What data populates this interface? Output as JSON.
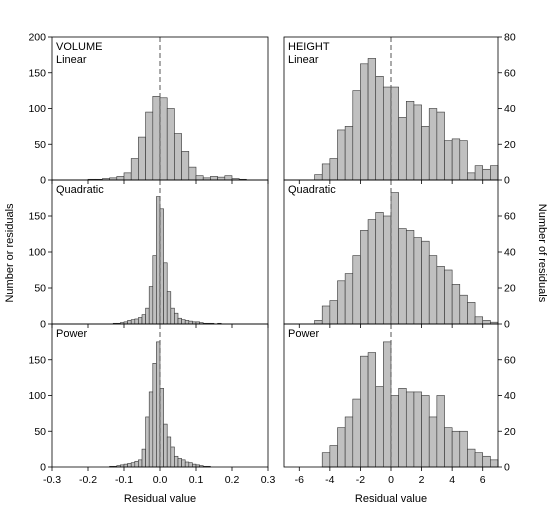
{
  "figure": {
    "ylabel_left": "Number or residuals",
    "ylabel_right": "Number of residuals",
    "xlabel_left": "Residual value",
    "xlabel_right": "Residual value",
    "bar_fill": "#c0c0c0",
    "bar_stroke": "#333333",
    "zero_line_color": "#555555"
  },
  "chart_data": [
    {
      "type": "bar",
      "column": "VOLUME",
      "panel_title": "VOLUME",
      "model": "Linear",
      "xlim": [
        -0.3,
        0.3
      ],
      "ylim": [
        0,
        200
      ],
      "xticks": [
        "-0.3",
        "-0.2",
        "-0.1",
        "0.0",
        "0.1",
        "0.2",
        "0.3"
      ],
      "yticks": [
        "0",
        "50",
        "100",
        "150",
        "200"
      ],
      "bin_width": 0.02,
      "bin_starts": [
        -0.26,
        -0.24,
        -0.22,
        -0.2,
        -0.18,
        -0.16,
        -0.14,
        -0.12,
        -0.1,
        -0.08,
        -0.06,
        -0.04,
        -0.02,
        0.0,
        0.02,
        0.04,
        0.06,
        0.08,
        0.1,
        0.12,
        0.14,
        0.16,
        0.18,
        0.2,
        0.22,
        0.24
      ],
      "values": [
        0,
        0,
        0,
        1,
        1,
        2,
        3,
        5,
        10,
        30,
        60,
        95,
        117,
        115,
        100,
        65,
        40,
        18,
        6,
        3,
        5,
        4,
        6,
        2,
        1,
        0
      ]
    },
    {
      "type": "bar",
      "column": "VOLUME",
      "panel_title": "",
      "model": "Quadratic",
      "xlim": [
        -0.3,
        0.3
      ],
      "ylim": [
        0,
        200
      ],
      "xticks": [
        "-0.3",
        "-0.2",
        "-0.1",
        "0.0",
        "0.1",
        "0.2",
        "0.3"
      ],
      "yticks": [
        "0",
        "50",
        "100",
        "150"
      ],
      "bin_width": 0.01,
      "bin_starts": [
        -0.2,
        -0.19,
        -0.18,
        -0.17,
        -0.16,
        -0.15,
        -0.14,
        -0.13,
        -0.12,
        -0.11,
        -0.1,
        -0.09,
        -0.08,
        -0.07,
        -0.06,
        -0.05,
        -0.04,
        -0.03,
        -0.02,
        -0.01,
        0.0,
        0.01,
        0.02,
        0.03,
        0.04,
        0.05,
        0.06,
        0.07,
        0.08,
        0.09,
        0.1,
        0.11,
        0.12,
        0.13,
        0.14,
        0.15,
        0.16,
        0.17,
        0.18,
        0.19
      ],
      "values": [
        0,
        0,
        0,
        0,
        0,
        0,
        0,
        1,
        1,
        2,
        3,
        5,
        6,
        7,
        9,
        13,
        22,
        52,
        95,
        177,
        160,
        85,
        45,
        22,
        15,
        8,
        6,
        5,
        4,
        3,
        3,
        2,
        1,
        1,
        1,
        0,
        1,
        0,
        0,
        0
      ]
    },
    {
      "type": "bar",
      "column": "VOLUME",
      "panel_title": "",
      "model": "Power",
      "xlim": [
        -0.3,
        0.3
      ],
      "ylim": [
        0,
        200
      ],
      "xticks": [
        "-0.3",
        "-0.2",
        "-0.1",
        "0.0",
        "0.1",
        "0.2",
        "0.3"
      ],
      "yticks": [
        "0",
        "50",
        "100",
        "150"
      ],
      "bin_width": 0.01,
      "bin_starts": [
        -0.2,
        -0.19,
        -0.18,
        -0.17,
        -0.16,
        -0.15,
        -0.14,
        -0.13,
        -0.12,
        -0.11,
        -0.1,
        -0.09,
        -0.08,
        -0.07,
        -0.06,
        -0.05,
        -0.04,
        -0.03,
        -0.02,
        -0.01,
        0.0,
        0.01,
        0.02,
        0.03,
        0.04,
        0.05,
        0.06,
        0.07,
        0.08,
        0.09,
        0.1,
        0.11,
        0.12,
        0.13,
        0.14
      ],
      "values": [
        0,
        0,
        0,
        0,
        0,
        0,
        1,
        1,
        2,
        3,
        4,
        5,
        6,
        8,
        10,
        25,
        70,
        105,
        145,
        175,
        110,
        60,
        42,
        28,
        15,
        12,
        10,
        7,
        6,
        4,
        3,
        2,
        1,
        1,
        0
      ]
    },
    {
      "type": "bar",
      "column": "HEIGHT",
      "panel_title": "HEIGHT",
      "model": "Linear",
      "xlim": [
        -7,
        7
      ],
      "ylim": [
        0,
        80
      ],
      "xticks": [
        "-6",
        "-4",
        "-2",
        "0",
        "2",
        "4",
        "6"
      ],
      "yticks": [
        "0",
        "20",
        "40",
        "60",
        "80"
      ],
      "bin_width": 0.5,
      "bin_starts": [
        -6.5,
        -6.0,
        -5.5,
        -5.0,
        -4.5,
        -4.0,
        -3.5,
        -3.0,
        -2.5,
        -2.0,
        -1.5,
        -1.0,
        -0.5,
        0.0,
        0.5,
        1.0,
        1.5,
        2.0,
        2.5,
        3.0,
        3.5,
        4.0,
        4.5,
        5.0,
        5.5,
        6.0,
        6.5
      ],
      "values": [
        0,
        0,
        0,
        3,
        9,
        12,
        28,
        30,
        50,
        65,
        68,
        58,
        52,
        52,
        35,
        44,
        42,
        30,
        40,
        38,
        22,
        23,
        22,
        4,
        8,
        6,
        8
      ]
    },
    {
      "type": "bar",
      "column": "HEIGHT",
      "panel_title": "",
      "model": "Quadratic",
      "xlim": [
        -7,
        7
      ],
      "ylim": [
        0,
        80
      ],
      "xticks": [
        "-6",
        "-4",
        "-2",
        "0",
        "2",
        "4",
        "6"
      ],
      "yticks": [
        "0",
        "20",
        "40",
        "60"
      ],
      "bin_width": 0.5,
      "bin_starts": [
        -6.5,
        -6.0,
        -5.5,
        -5.0,
        -4.5,
        -4.0,
        -3.5,
        -3.0,
        -2.5,
        -2.0,
        -1.5,
        -1.0,
        -0.5,
        0.0,
        0.5,
        1.0,
        1.5,
        2.0,
        2.5,
        3.0,
        3.5,
        4.0,
        4.5,
        5.0,
        5.5,
        6.0,
        6.5
      ],
      "values": [
        0,
        0,
        0,
        2,
        10,
        13,
        24,
        28,
        38,
        52,
        58,
        62,
        60,
        73,
        53,
        52,
        48,
        46,
        38,
        32,
        30,
        22,
        16,
        12,
        4,
        2,
        1
      ]
    },
    {
      "type": "bar",
      "column": "HEIGHT",
      "panel_title": "",
      "model": "Power",
      "xlim": [
        -7,
        7
      ],
      "ylim": [
        0,
        80
      ],
      "xticks": [
        "-6",
        "-4",
        "-2",
        "0",
        "2",
        "4",
        "6"
      ],
      "yticks": [
        "0",
        "20",
        "40",
        "60"
      ],
      "bin_width": 0.5,
      "bin_starts": [
        -6.5,
        -6.0,
        -5.5,
        -5.0,
        -4.5,
        -4.0,
        -3.5,
        -3.0,
        -2.5,
        -2.0,
        -1.5,
        -1.0,
        -0.5,
        0.0,
        0.5,
        1.0,
        1.5,
        2.0,
        2.5,
        3.0,
        3.5,
        4.0,
        4.5,
        5.0,
        5.5,
        6.0,
        6.5
      ],
      "values": [
        0,
        0,
        0,
        0,
        8,
        12,
        22,
        28,
        38,
        62,
        64,
        45,
        70,
        40,
        44,
        42,
        42,
        40,
        28,
        40,
        22,
        20,
        20,
        10,
        8,
        6,
        4
      ]
    }
  ]
}
